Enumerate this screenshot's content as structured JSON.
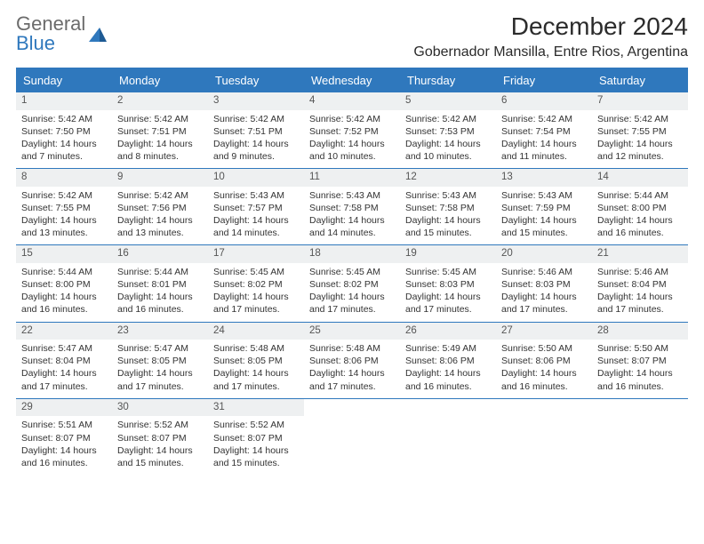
{
  "logo": {
    "word1": "General",
    "word2": "Blue"
  },
  "title": "December 2024",
  "location": "Gobernador Mansilla, Entre Rios, Argentina",
  "colors": {
    "accent": "#2f78bd",
    "header_text": "#ffffff",
    "daynum_bg": "#eef0f1",
    "body_text": "#333333",
    "logo_gray": "#6b6b6b"
  },
  "day_headers": [
    "Sunday",
    "Monday",
    "Tuesday",
    "Wednesday",
    "Thursday",
    "Friday",
    "Saturday"
  ],
  "weeks": [
    [
      {
        "n": "1",
        "sr": "5:42 AM",
        "ss": "7:50 PM",
        "dl": "14 hours and 7 minutes."
      },
      {
        "n": "2",
        "sr": "5:42 AM",
        "ss": "7:51 PM",
        "dl": "14 hours and 8 minutes."
      },
      {
        "n": "3",
        "sr": "5:42 AM",
        "ss": "7:51 PM",
        "dl": "14 hours and 9 minutes."
      },
      {
        "n": "4",
        "sr": "5:42 AM",
        "ss": "7:52 PM",
        "dl": "14 hours and 10 minutes."
      },
      {
        "n": "5",
        "sr": "5:42 AM",
        "ss": "7:53 PM",
        "dl": "14 hours and 10 minutes."
      },
      {
        "n": "6",
        "sr": "5:42 AM",
        "ss": "7:54 PM",
        "dl": "14 hours and 11 minutes."
      },
      {
        "n": "7",
        "sr": "5:42 AM",
        "ss": "7:55 PM",
        "dl": "14 hours and 12 minutes."
      }
    ],
    [
      {
        "n": "8",
        "sr": "5:42 AM",
        "ss": "7:55 PM",
        "dl": "14 hours and 13 minutes."
      },
      {
        "n": "9",
        "sr": "5:42 AM",
        "ss": "7:56 PM",
        "dl": "14 hours and 13 minutes."
      },
      {
        "n": "10",
        "sr": "5:43 AM",
        "ss": "7:57 PM",
        "dl": "14 hours and 14 minutes."
      },
      {
        "n": "11",
        "sr": "5:43 AM",
        "ss": "7:58 PM",
        "dl": "14 hours and 14 minutes."
      },
      {
        "n": "12",
        "sr": "5:43 AM",
        "ss": "7:58 PM",
        "dl": "14 hours and 15 minutes."
      },
      {
        "n": "13",
        "sr": "5:43 AM",
        "ss": "7:59 PM",
        "dl": "14 hours and 15 minutes."
      },
      {
        "n": "14",
        "sr": "5:44 AM",
        "ss": "8:00 PM",
        "dl": "14 hours and 16 minutes."
      }
    ],
    [
      {
        "n": "15",
        "sr": "5:44 AM",
        "ss": "8:00 PM",
        "dl": "14 hours and 16 minutes."
      },
      {
        "n": "16",
        "sr": "5:44 AM",
        "ss": "8:01 PM",
        "dl": "14 hours and 16 minutes."
      },
      {
        "n": "17",
        "sr": "5:45 AM",
        "ss": "8:02 PM",
        "dl": "14 hours and 17 minutes."
      },
      {
        "n": "18",
        "sr": "5:45 AM",
        "ss": "8:02 PM",
        "dl": "14 hours and 17 minutes."
      },
      {
        "n": "19",
        "sr": "5:45 AM",
        "ss": "8:03 PM",
        "dl": "14 hours and 17 minutes."
      },
      {
        "n": "20",
        "sr": "5:46 AM",
        "ss": "8:03 PM",
        "dl": "14 hours and 17 minutes."
      },
      {
        "n": "21",
        "sr": "5:46 AM",
        "ss": "8:04 PM",
        "dl": "14 hours and 17 minutes."
      }
    ],
    [
      {
        "n": "22",
        "sr": "5:47 AM",
        "ss": "8:04 PM",
        "dl": "14 hours and 17 minutes."
      },
      {
        "n": "23",
        "sr": "5:47 AM",
        "ss": "8:05 PM",
        "dl": "14 hours and 17 minutes."
      },
      {
        "n": "24",
        "sr": "5:48 AM",
        "ss": "8:05 PM",
        "dl": "14 hours and 17 minutes."
      },
      {
        "n": "25",
        "sr": "5:48 AM",
        "ss": "8:06 PM",
        "dl": "14 hours and 17 minutes."
      },
      {
        "n": "26",
        "sr": "5:49 AM",
        "ss": "8:06 PM",
        "dl": "14 hours and 16 minutes."
      },
      {
        "n": "27",
        "sr": "5:50 AM",
        "ss": "8:06 PM",
        "dl": "14 hours and 16 minutes."
      },
      {
        "n": "28",
        "sr": "5:50 AM",
        "ss": "8:07 PM",
        "dl": "14 hours and 16 minutes."
      }
    ],
    [
      {
        "n": "29",
        "sr": "5:51 AM",
        "ss": "8:07 PM",
        "dl": "14 hours and 16 minutes."
      },
      {
        "n": "30",
        "sr": "5:52 AM",
        "ss": "8:07 PM",
        "dl": "14 hours and 15 minutes."
      },
      {
        "n": "31",
        "sr": "5:52 AM",
        "ss": "8:07 PM",
        "dl": "14 hours and 15 minutes."
      },
      null,
      null,
      null,
      null
    ]
  ],
  "labels": {
    "sunrise": "Sunrise: ",
    "sunset": "Sunset: ",
    "daylight": "Daylight: "
  }
}
